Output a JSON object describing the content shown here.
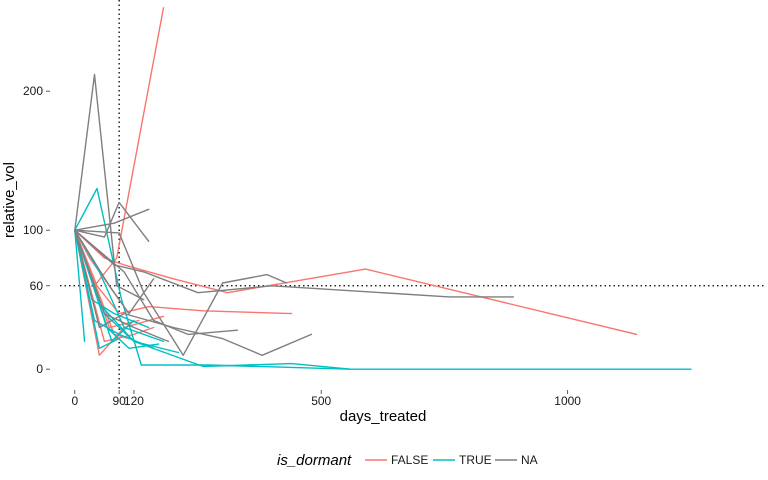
{
  "chart_data": {
    "type": "line",
    "xlabel": "days_treated",
    "ylabel": "relative_vol",
    "xlim": [
      -30,
      1370
    ],
    "ylim": [
      -15,
      262
    ],
    "x_ticks": [
      0,
      90,
      120,
      500,
      1000
    ],
    "x_tick_labels": [
      "0",
      "90",
      "120",
      "500",
      "1000"
    ],
    "y_ticks": [
      0,
      60,
      100,
      200
    ],
    "y_tick_labels": [
      "0",
      "60",
      "100",
      "200"
    ],
    "reference_lines": [
      {
        "orientation": "vertical",
        "value": 90,
        "style": "dotted"
      },
      {
        "orientation": "horizontal",
        "value": 60,
        "style": "dotted"
      }
    ],
    "grid": false,
    "legend": {
      "title": "is_dormant",
      "position": "bottom",
      "entries": [
        {
          "label": "FALSE",
          "color": "#F8766D"
        },
        {
          "label": "TRUE",
          "color": "#00BFC4"
        },
        {
          "label": "NA",
          "color": "#7F7F7F"
        }
      ]
    },
    "series": [
      {
        "group": "FALSE",
        "color": "#F8766D",
        "x": [
          0,
          40,
          85,
          180
        ],
        "y": [
          100,
          60,
          80,
          260
        ]
      },
      {
        "group": "FALSE",
        "color": "#F8766D",
        "x": [
          0,
          60,
          100,
          200,
          310,
          590,
          1140
        ],
        "y": [
          100,
          80,
          75,
          65,
          55,
          72,
          25
        ]
      },
      {
        "group": "FALSE",
        "color": "#F8766D",
        "x": [
          0,
          45,
          90,
          150,
          260,
          440
        ],
        "y": [
          100,
          60,
          40,
          45,
          42,
          40
        ]
      },
      {
        "group": "FALSE",
        "color": "#F8766D",
        "x": [
          0,
          50,
          100,
          180
        ],
        "y": [
          100,
          10,
          30,
          38
        ]
      },
      {
        "group": "FALSE",
        "color": "#F8766D",
        "x": [
          0,
          60,
          120,
          160
        ],
        "y": [
          100,
          20,
          25,
          30
        ]
      },
      {
        "group": "FALSE",
        "color": "#F8766D",
        "x": [
          0,
          30,
          90
        ],
        "y": [
          100,
          80,
          50
        ]
      },
      {
        "group": "FALSE",
        "color": "#F8766D",
        "x": [
          0,
          70,
          130
        ],
        "y": [
          100,
          30,
          35
        ]
      },
      {
        "group": "FALSE",
        "color": "#F8766D",
        "x": [
          0,
          80,
          110
        ],
        "y": [
          100,
          25,
          22
        ]
      },
      {
        "group": "TRUE",
        "color": "#00BFC4",
        "x": [
          0,
          45,
          95,
          135,
          270,
          560,
          1250
        ],
        "y": [
          100,
          130,
          50,
          3,
          3,
          0,
          0
        ]
      },
      {
        "group": "TRUE",
        "color": "#00BFC4",
        "x": [
          0,
          60,
          120,
          260,
          440,
          560
        ],
        "y": [
          100,
          40,
          20,
          2,
          4,
          0
        ]
      },
      {
        "group": "TRUE",
        "color": "#00BFC4",
        "x": [
          0,
          20
        ],
        "y": [
          100,
          20
        ]
      },
      {
        "group": "TRUE",
        "color": "#00BFC4",
        "x": [
          0,
          50,
          100,
          180
        ],
        "y": [
          100,
          70,
          30,
          20
        ]
      },
      {
        "group": "TRUE",
        "color": "#00BFC4",
        "x": [
          0,
          40,
          90,
          160
        ],
        "y": [
          100,
          35,
          25,
          15
        ]
      },
      {
        "group": "TRUE",
        "color": "#00BFC4",
        "x": [
          0,
          55,
          120,
          210
        ],
        "y": [
          100,
          45,
          20,
          12
        ]
      },
      {
        "group": "TRUE",
        "color": "#00BFC4",
        "x": [
          0,
          65,
          110,
          170
        ],
        "y": [
          100,
          30,
          15,
          18
        ]
      },
      {
        "group": "TRUE",
        "color": "#00BFC4",
        "x": [
          0,
          35,
          80,
          150
        ],
        "y": [
          100,
          50,
          40,
          30
        ]
      },
      {
        "group": "TRUE",
        "color": "#00BFC4",
        "x": [
          0,
          75,
          120
        ],
        "y": [
          100,
          20,
          35
        ]
      },
      {
        "group": "TRUE",
        "color": "#00BFC4",
        "x": [
          0,
          50,
          90
        ],
        "y": [
          100,
          15,
          22
        ]
      },
      {
        "group": "NA",
        "color": "#7F7F7F",
        "x": [
          0,
          40,
          85,
          140
        ],
        "y": [
          100,
          212,
          60,
          50
        ]
      },
      {
        "group": "NA",
        "color": "#7F7F7F",
        "x": [
          0,
          60,
          90,
          150
        ],
        "y": [
          100,
          95,
          120,
          92
        ]
      },
      {
        "group": "NA",
        "color": "#7F7F7F",
        "x": [
          0,
          90,
          140,
          220,
          300,
          390,
          430
        ],
        "y": [
          100,
          98,
          55,
          10,
          62,
          68,
          62
        ]
      },
      {
        "group": "NA",
        "color": "#7F7F7F",
        "x": [
          0,
          80,
          140,
          250,
          400,
          760,
          890
        ],
        "y": [
          100,
          75,
          70,
          55,
          60,
          52,
          52
        ]
      },
      {
        "group": "NA",
        "color": "#7F7F7F",
        "x": [
          0,
          50,
          100,
          200,
          300,
          380,
          480
        ],
        "y": [
          100,
          30,
          40,
          30,
          22,
          10,
          25
        ]
      },
      {
        "group": "NA",
        "color": "#7F7F7F",
        "x": [
          0,
          80,
          150
        ],
        "y": [
          100,
          105,
          115
        ]
      },
      {
        "group": "NA",
        "color": "#7F7F7F",
        "x": [
          0,
          60,
          120,
          190
        ],
        "y": [
          100,
          40,
          30,
          20
        ]
      },
      {
        "group": "NA",
        "color": "#7F7F7F",
        "x": [
          0,
          70,
          110,
          160
        ],
        "y": [
          100,
          60,
          40,
          65
        ]
      },
      {
        "group": "NA",
        "color": "#7F7F7F",
        "x": [
          0,
          100,
          160,
          230,
          330
        ],
        "y": [
          100,
          70,
          35,
          25,
          28
        ]
      }
    ]
  }
}
